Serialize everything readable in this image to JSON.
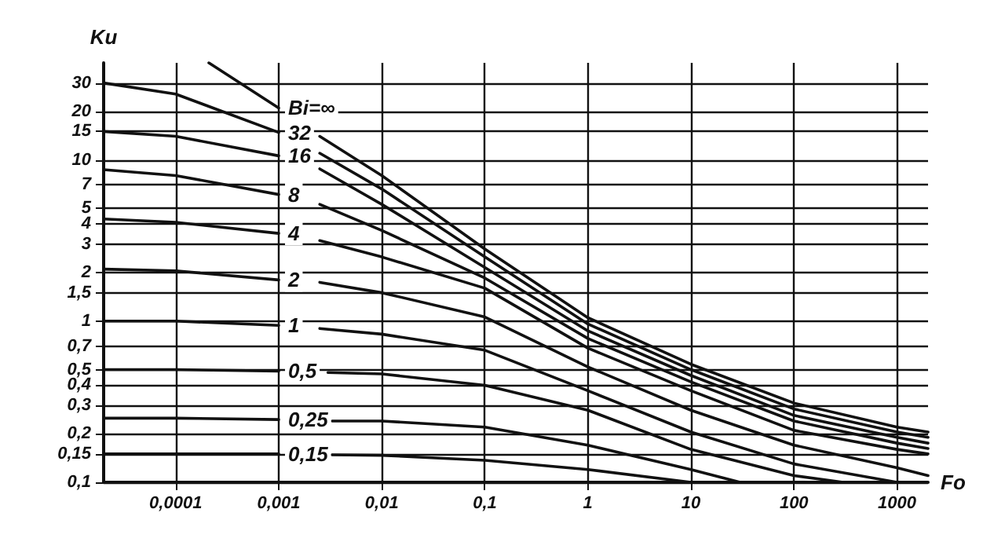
{
  "chart_data": {
    "type": "line",
    "xlabel": "Fo",
    "ylabel": "Ku",
    "log": "xy",
    "grid": true,
    "legend": false,
    "marker": "none",
    "line_style": "solid",
    "xlim": [
      2e-05,
      2000
    ],
    "ylim": [
      0.1,
      40
    ],
    "xticks": [
      {
        "value": 0.0001,
        "label": "0,0001"
      },
      {
        "value": 0.001,
        "label": "0,001"
      },
      {
        "value": 0.01,
        "label": "0,01"
      },
      {
        "value": 0.1,
        "label": "0,1"
      },
      1,
      10,
      100,
      1000
    ],
    "yticks": [
      {
        "value": 0.1,
        "label": "0,1"
      },
      {
        "value": 0.15,
        "label": "0,15"
      },
      {
        "value": 0.2,
        "label": "0,2"
      },
      {
        "value": 0.3,
        "label": "0,3"
      },
      {
        "value": 0.4,
        "label": "0,4"
      },
      {
        "value": 0.5,
        "label": "0,5"
      },
      {
        "value": 0.7,
        "label": "0,7"
      },
      1,
      {
        "value": 1.5,
        "label": "1,5"
      },
      2,
      3,
      4,
      5,
      7,
      10,
      15,
      20,
      30
    ],
    "series": [
      {
        "name": "Bi=∞",
        "color": "#111111",
        "x": [
          0.00021,
          0.001,
          0.0016,
          0.0025,
          0.01,
          0.1,
          1,
          10,
          100,
          1000,
          2000
        ],
        "values": [
          40,
          21,
          null,
          14,
          8.0,
          2.8,
          1.05,
          0.54,
          0.31,
          0.22,
          0.205
        ]
      },
      {
        "name": "32",
        "color": "#111111",
        "x": [
          2e-05,
          0.0001,
          0.001,
          0.0016,
          0.0025,
          0.01,
          0.1,
          1,
          10,
          100,
          1000,
          2000
        ],
        "values": [
          30,
          25.6,
          14.8,
          null,
          11,
          6.6,
          2.5,
          0.96,
          0.5,
          0.285,
          0.205,
          0.19
        ]
      },
      {
        "name": "16",
        "color": "#111111",
        "x": [
          2e-05,
          0.0001,
          0.001,
          0.0016,
          0.0025,
          0.01,
          0.1,
          1,
          10,
          100,
          1000,
          2000
        ],
        "values": [
          15,
          14,
          10.6,
          null,
          8.8,
          5.3,
          2.15,
          0.87,
          0.46,
          0.26,
          0.19,
          0.175
        ]
      },
      {
        "name": "8",
        "color": "#111111",
        "x": [
          2e-05,
          0.0001,
          0.001,
          0.0016,
          0.0025,
          0.01,
          0.1,
          1,
          10,
          100,
          1000,
          2000
        ],
        "values": [
          8.7,
          8.0,
          6.1,
          null,
          5.3,
          3.65,
          1.85,
          0.78,
          0.42,
          0.24,
          0.175,
          0.162
        ]
      },
      {
        "name": "4",
        "color": "#111111",
        "x": [
          2e-05,
          0.0001,
          0.001,
          0.0016,
          0.0025,
          0.01,
          0.1,
          1,
          10,
          100,
          1000,
          2000
        ],
        "values": [
          4.3,
          4.1,
          3.5,
          null,
          3.16,
          2.5,
          1.6,
          0.68,
          0.37,
          0.21,
          0.16,
          0.15
        ]
      },
      {
        "name": "2",
        "color": "#111111",
        "x": [
          2e-05,
          0.0001,
          0.001,
          0.0016,
          0.0025,
          0.01,
          0.1,
          1,
          10,
          100,
          1000,
          2000
        ],
        "values": [
          2.1,
          2.05,
          1.8,
          null,
          1.74,
          1.5,
          1.06,
          0.52,
          0.28,
          0.17,
          0.123,
          0.11
        ]
      },
      {
        "name": "1",
        "color": "#111111",
        "x": [
          2e-05,
          0.0001,
          0.001,
          0.0016,
          0.0025,
          0.01,
          0.1,
          1,
          10,
          100,
          1000
        ],
        "values": [
          1.0,
          1.0,
          0.94,
          null,
          0.9,
          0.83,
          0.66,
          0.37,
          0.205,
          0.13,
          0.1
        ]
      },
      {
        "name": "0,5",
        "color": "#111111",
        "x": [
          2e-05,
          0.0001,
          0.001,
          0.0016,
          0.003,
          0.01,
          0.1,
          1,
          10,
          100,
          300
        ],
        "values": [
          0.5,
          0.5,
          0.49,
          null,
          0.48,
          0.47,
          0.4,
          0.28,
          0.16,
          0.11,
          0.1
        ]
      },
      {
        "name": "0,25",
        "color": "#111111",
        "x": [
          2e-05,
          0.0001,
          0.001,
          0.0016,
          0.0033,
          0.01,
          0.1,
          1,
          10,
          30
        ],
        "values": [
          0.25,
          0.25,
          0.245,
          null,
          0.24,
          0.24,
          0.22,
          0.17,
          0.12,
          0.1
        ]
      },
      {
        "name": "0,15",
        "color": "#111111",
        "x": [
          2e-05,
          0.0001,
          0.001,
          0.0016,
          0.0033,
          0.01,
          0.1,
          1,
          10
        ],
        "values": [
          0.15,
          0.15,
          0.15,
          null,
          0.148,
          0.147,
          0.137,
          0.12,
          0.1
        ]
      }
    ]
  }
}
